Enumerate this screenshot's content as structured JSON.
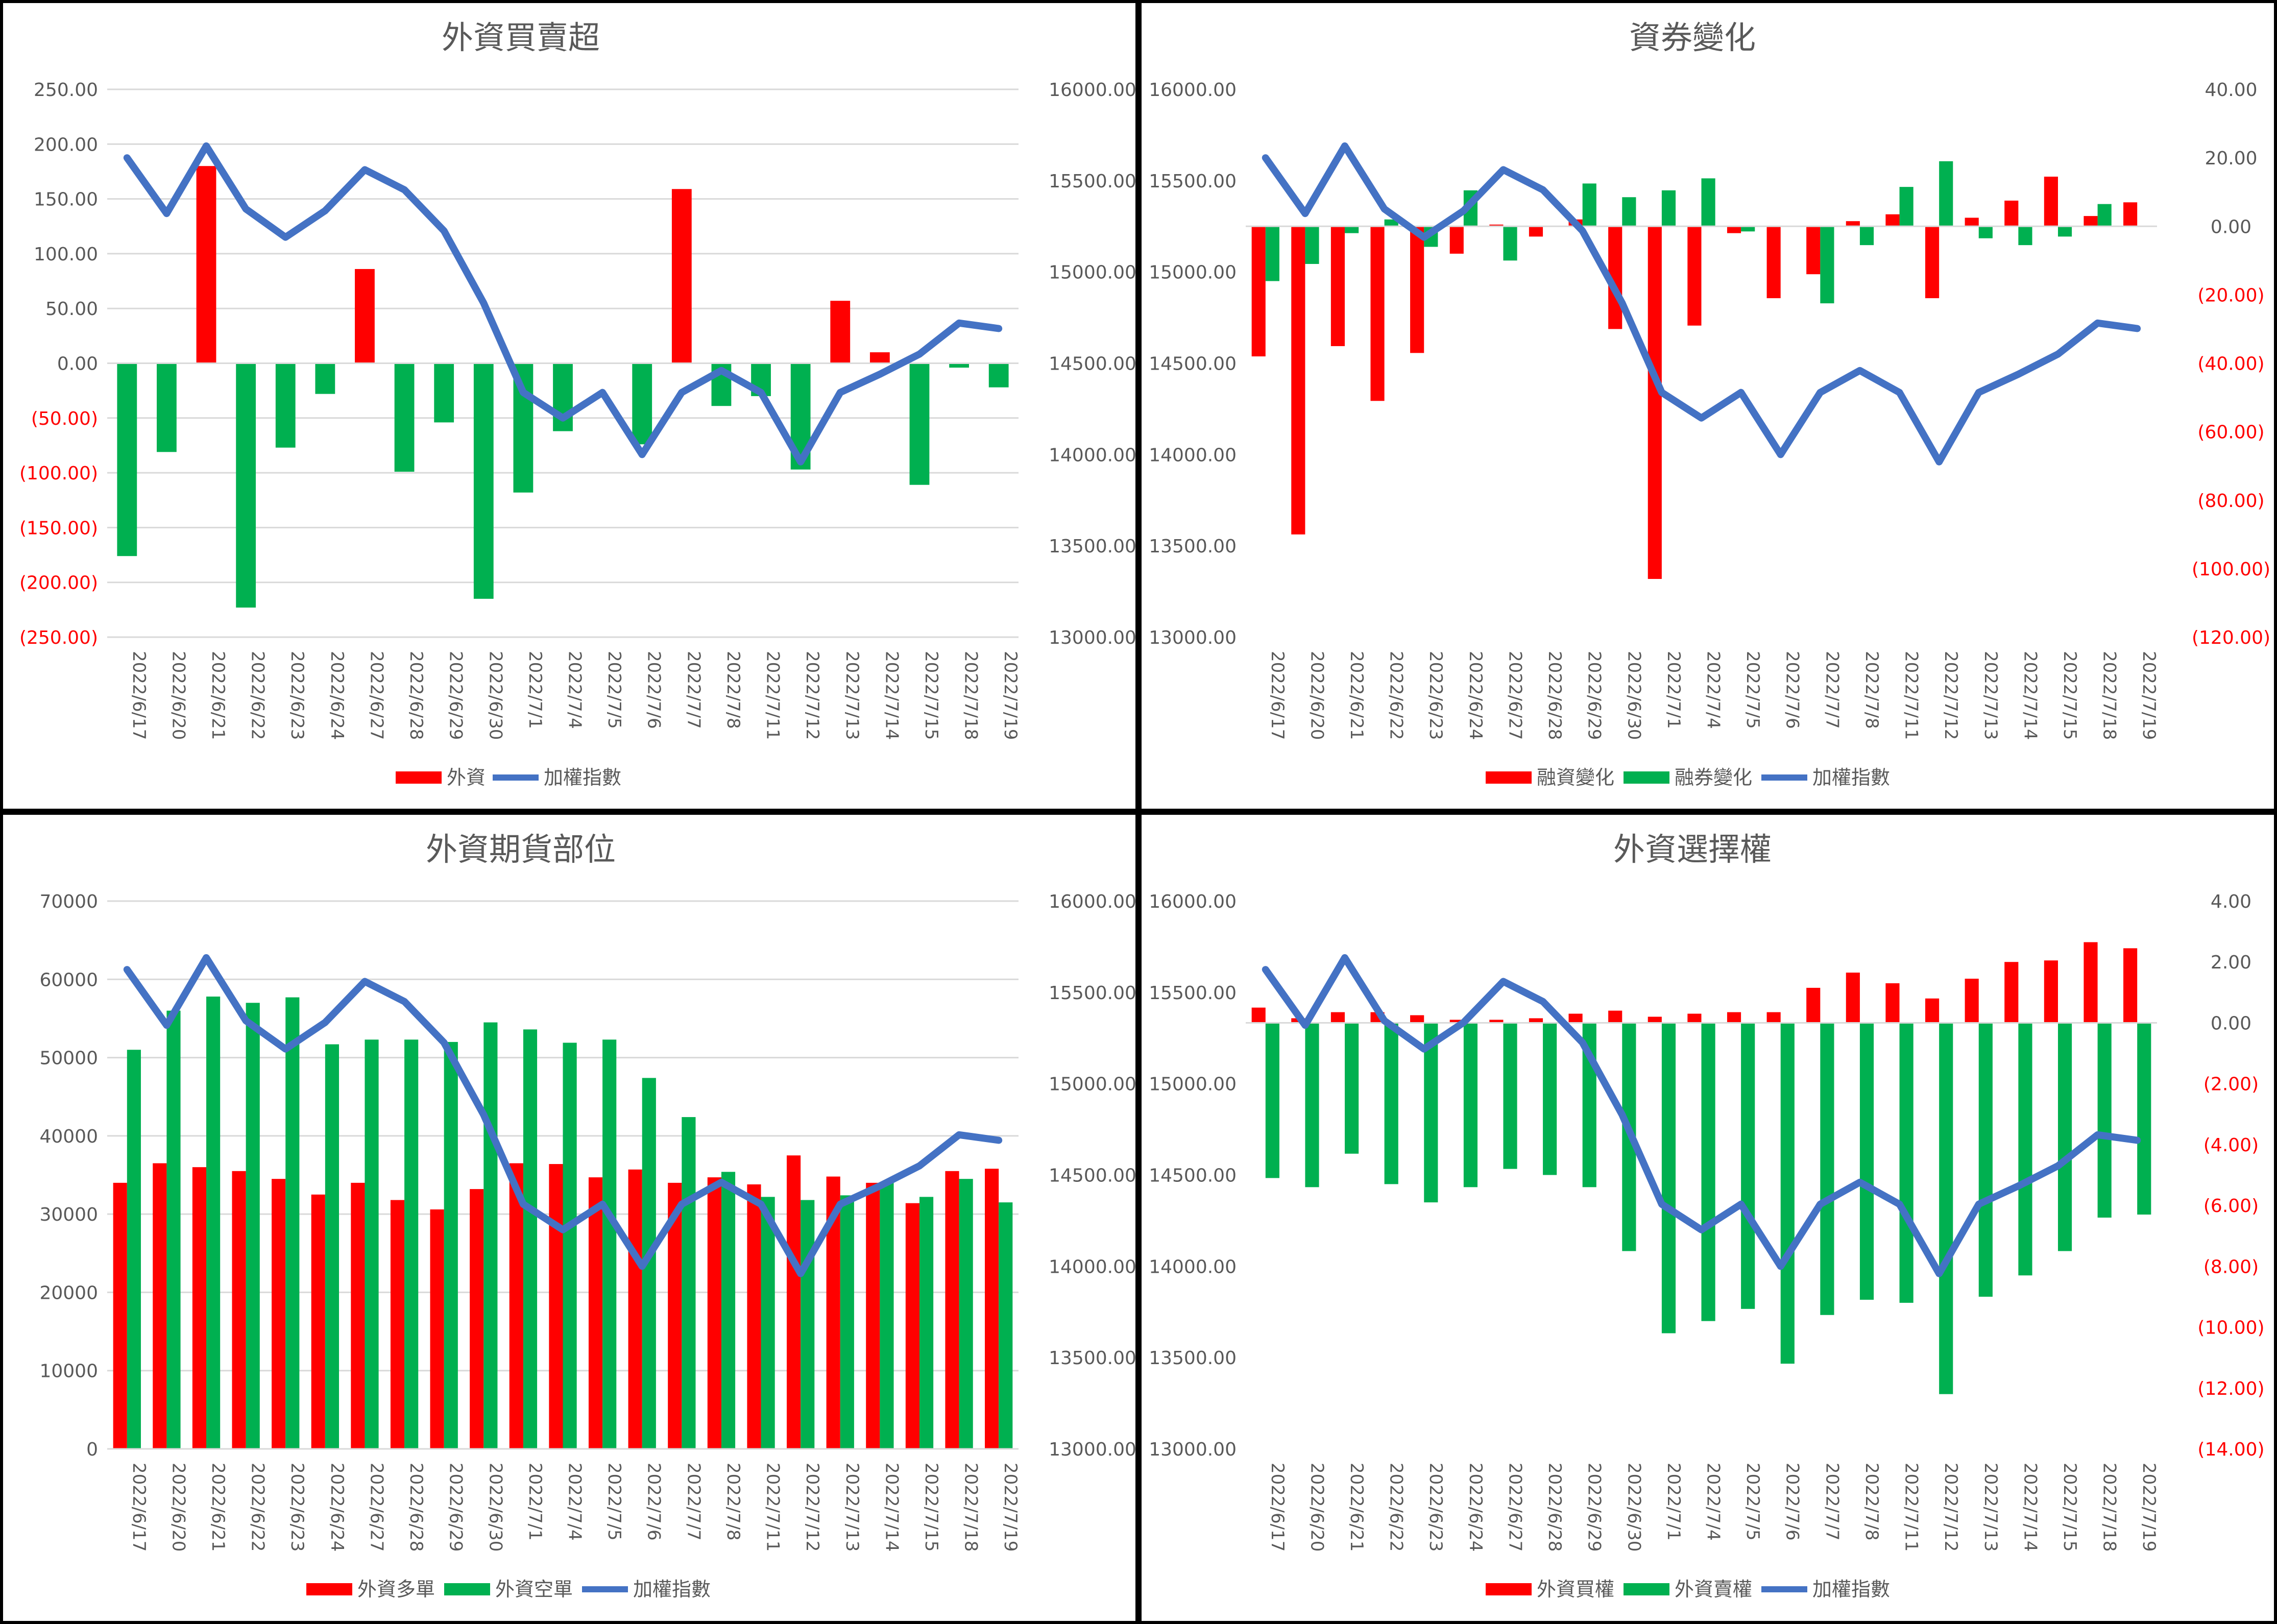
{
  "colors": {
    "red": "#ff0000",
    "green": "#00b050",
    "blue": "#4472c4",
    "axis_text": "#595959",
    "neg_text": "#ff0000",
    "gridline": "#d9d9d9",
    "border": "#000000"
  },
  "chart_data": [
    {
      "type": "bar",
      "title": "外資買賣超",
      "categories": [
        "2022/6/17",
        "2022/6/20",
        "2022/6/21",
        "2022/6/22",
        "2022/6/23",
        "2022/6/24",
        "2022/6/27",
        "2022/6/28",
        "2022/6/29",
        "2022/6/30",
        "2022/7/1",
        "2022/7/4",
        "2022/7/5",
        "2022/7/6",
        "2022/7/7",
        "2022/7/8",
        "2022/7/11",
        "2022/7/12",
        "2022/7/13",
        "2022/7/14",
        "2022/7/15",
        "2022/7/18",
        "2022/7/19"
      ],
      "bar_series": [
        {
          "name": "外資",
          "color": "#ff0000",
          "neg_color": "#00b050",
          "values": [
            -176,
            -81,
            180,
            -223,
            -77,
            -28,
            86,
            -99,
            -54,
            -215,
            -118,
            -62,
            0,
            -74,
            159,
            -39,
            -30,
            -97,
            57,
            10,
            -111,
            -4,
            -22
          ]
        }
      ],
      "line_series": {
        "name": "加權指數",
        "color": "#4472c4",
        "values": [
          15625,
          15320,
          15690,
          15345,
          15190,
          15335,
          15560,
          15450,
          15225,
          14830,
          14340,
          14200,
          14340,
          14000,
          14340,
          14460,
          14340,
          13960,
          14340,
          14440,
          14550,
          14720,
          14690
        ]
      },
      "left_axis": {
        "min": -250,
        "max": 250,
        "step": 50,
        "format": "paren2",
        "ticks": [
          "(250.00)",
          "(200.00)",
          "(150.00)",
          "(100.00)",
          "(50.00)",
          "0.00",
          "50.00",
          "100.00",
          "150.00",
          "200.00",
          "250.00"
        ]
      },
      "right_axis": {
        "min": 13000,
        "max": 16000,
        "step": 500,
        "format": "fixed2",
        "ticks": [
          "13000.00",
          "13500.00",
          "14000.00",
          "14500.00",
          "15000.00",
          "15500.00",
          "16000.00"
        ]
      },
      "bars_on": "left",
      "line_on": "right",
      "gridlines": true,
      "legend": [
        "外資",
        "加權指數"
      ]
    },
    {
      "type": "bar",
      "title": "資券變化",
      "categories": [
        "2022/6/17",
        "2022/6/20",
        "2022/6/21",
        "2022/6/22",
        "2022/6/23",
        "2022/6/24",
        "2022/6/27",
        "2022/6/28",
        "2022/6/29",
        "2022/6/30",
        "2022/7/1",
        "2022/7/4",
        "2022/7/5",
        "2022/7/6",
        "2022/7/7",
        "2022/7/8",
        "2022/7/11",
        "2022/7/12",
        "2022/7/13",
        "2022/7/14",
        "2022/7/15",
        "2022/7/18",
        "2022/7/19"
      ],
      "bar_series": [
        {
          "name": "融資變化",
          "color": "#ff0000",
          "values": [
            -38,
            -90,
            -35,
            -51,
            -37,
            -8,
            0.5,
            -3,
            2,
            -30,
            -103,
            -29,
            -2,
            -21,
            -14,
            1.5,
            3.5,
            -21,
            2.5,
            7.5,
            14.5,
            3,
            7
          ]
        },
        {
          "name": "融券變化",
          "color": "#00b050",
          "values": [
            -16,
            -11,
            -2,
            2,
            -6,
            10.5,
            -10,
            0,
            12.5,
            8.5,
            10.5,
            14,
            -1.5,
            0,
            -22.5,
            -5.5,
            11.5,
            19,
            -3.5,
            -5.5,
            -3,
            6.5,
            0
          ]
        }
      ],
      "line_series": {
        "name": "加權指數",
        "color": "#4472c4",
        "values": [
          15625,
          15320,
          15690,
          15345,
          15190,
          15335,
          15560,
          15450,
          15225,
          14830,
          14340,
          14200,
          14340,
          14000,
          14340,
          14460,
          14340,
          13960,
          14340,
          14440,
          14550,
          14720,
          14690
        ]
      },
      "left_axis": {
        "min": 13000,
        "max": 16000,
        "step": 500,
        "format": "fixed2",
        "ticks": [
          "13000.00",
          "13500.00",
          "14000.00",
          "14500.00",
          "15000.00",
          "15500.00",
          "16000.00"
        ]
      },
      "right_axis": {
        "min": -120,
        "max": 40,
        "step": 20,
        "format": "paren2",
        "ticks": [
          "(120.00)",
          "(100.00)",
          "(80.00)",
          "(60.00)",
          "(40.00)",
          "(20.00)",
          "0.00",
          "20.00",
          "40.00"
        ]
      },
      "bars_on": "right",
      "line_on": "left",
      "gridlines": false,
      "legend": [
        "融資變化",
        "融券變化",
        "加權指數"
      ]
    },
    {
      "type": "bar",
      "title": "外資期貨部位",
      "categories": [
        "2022/6/17",
        "2022/6/20",
        "2022/6/21",
        "2022/6/22",
        "2022/6/23",
        "2022/6/24",
        "2022/6/27",
        "2022/6/28",
        "2022/6/29",
        "2022/6/30",
        "2022/7/1",
        "2022/7/4",
        "2022/7/5",
        "2022/7/6",
        "2022/7/7",
        "2022/7/8",
        "2022/7/11",
        "2022/7/12",
        "2022/7/13",
        "2022/7/14",
        "2022/7/15",
        "2022/7/18",
        "2022/7/19"
      ],
      "bar_series": [
        {
          "name": "外資多單",
          "color": "#ff0000",
          "values": [
            34000,
            36500,
            36000,
            35500,
            34500,
            32500,
            34000,
            31800,
            30600,
            33200,
            36500,
            36400,
            34700,
            35700,
            34000,
            34700,
            33800,
            37500,
            34800,
            34000,
            31400,
            35500,
            35800
          ]
        },
        {
          "name": "外資空單",
          "color": "#00b050",
          "values": [
            51000,
            56000,
            57800,
            57000,
            57700,
            51700,
            52300,
            52300,
            52000,
            54500,
            53600,
            51900,
            52300,
            47400,
            42400,
            35400,
            32200,
            31800,
            32400,
            34000,
            32200,
            34500,
            31500
          ]
        }
      ],
      "line_series": {
        "name": "加權指數",
        "color": "#4472c4",
        "values": [
          15625,
          15320,
          15690,
          15345,
          15190,
          15335,
          15560,
          15450,
          15225,
          14830,
          14340,
          14200,
          14340,
          14000,
          14340,
          14460,
          14340,
          13960,
          14340,
          14440,
          14550,
          14720,
          14690
        ]
      },
      "left_axis": {
        "min": 0,
        "max": 70000,
        "step": 10000,
        "format": "int",
        "ticks": [
          "0",
          "10000",
          "20000",
          "30000",
          "40000",
          "50000",
          "60000",
          "70000"
        ]
      },
      "right_axis": {
        "min": 13000,
        "max": 16000,
        "step": 500,
        "format": "fixed2",
        "ticks": [
          "13000.00",
          "13500.00",
          "14000.00",
          "14500.00",
          "15000.00",
          "15500.00",
          "16000.00"
        ]
      },
      "bars_on": "left",
      "line_on": "right",
      "gridlines": true,
      "legend": [
        "外資多單",
        "外資空單",
        "加權指數"
      ]
    },
    {
      "type": "bar",
      "title": "外資選擇權",
      "categories": [
        "2022/6/17",
        "2022/6/20",
        "2022/6/21",
        "2022/6/22",
        "2022/6/23",
        "2022/6/24",
        "2022/6/27",
        "2022/6/28",
        "2022/6/29",
        "2022/6/30",
        "2022/7/1",
        "2022/7/4",
        "2022/7/5",
        "2022/7/6",
        "2022/7/7",
        "2022/7/8",
        "2022/7/11",
        "2022/7/12",
        "2022/7/13",
        "2022/7/14",
        "2022/7/15",
        "2022/7/18",
        "2022/7/19"
      ],
      "bar_series": [
        {
          "name": "外資買權",
          "color": "#ff0000",
          "values": [
            0.5,
            0.15,
            0.35,
            0.35,
            0.25,
            0.1,
            0.1,
            0.15,
            0.3,
            0.4,
            0.2,
            0.3,
            0.35,
            0.35,
            1.15,
            1.65,
            1.3,
            0.8,
            1.45,
            2.0,
            2.05,
            2.65,
            2.45
          ]
        },
        {
          "name": "外資賣權",
          "color": "#00b050",
          "values": [
            -5.1,
            -5.4,
            -4.3,
            -5.3,
            -5.9,
            -5.4,
            -4.8,
            -5.0,
            -5.4,
            -7.5,
            -10.2,
            -9.8,
            -9.4,
            -11.2,
            -9.6,
            -9.1,
            -9.2,
            -12.2,
            -9.0,
            -8.3,
            -7.5,
            -6.4,
            -6.3
          ]
        }
      ],
      "line_series": {
        "name": "加權指數",
        "color": "#4472c4",
        "values": [
          15625,
          15320,
          15690,
          15345,
          15190,
          15335,
          15560,
          15450,
          15225,
          14830,
          14340,
          14200,
          14340,
          14000,
          14340,
          14460,
          14340,
          13960,
          14340,
          14440,
          14550,
          14720,
          14690
        ]
      },
      "left_axis": {
        "min": 13000,
        "max": 16000,
        "step": 500,
        "format": "fixed2",
        "ticks": [
          "13000.00",
          "13500.00",
          "14000.00",
          "14500.00",
          "15000.00",
          "15500.00",
          "16000.00"
        ]
      },
      "right_axis": {
        "min": -14,
        "max": 4,
        "step": 2,
        "format": "paren2",
        "ticks": [
          "(14.00)",
          "(12.00)",
          "(10.00)",
          "(8.00)",
          "(6.00)",
          "(4.00)",
          "(2.00)",
          "0.00",
          "2.00",
          "4.00"
        ]
      },
      "bars_on": "right",
      "line_on": "left",
      "gridlines": false,
      "legend": [
        "外資買權",
        "外資賣權",
        "加權指數"
      ]
    }
  ]
}
